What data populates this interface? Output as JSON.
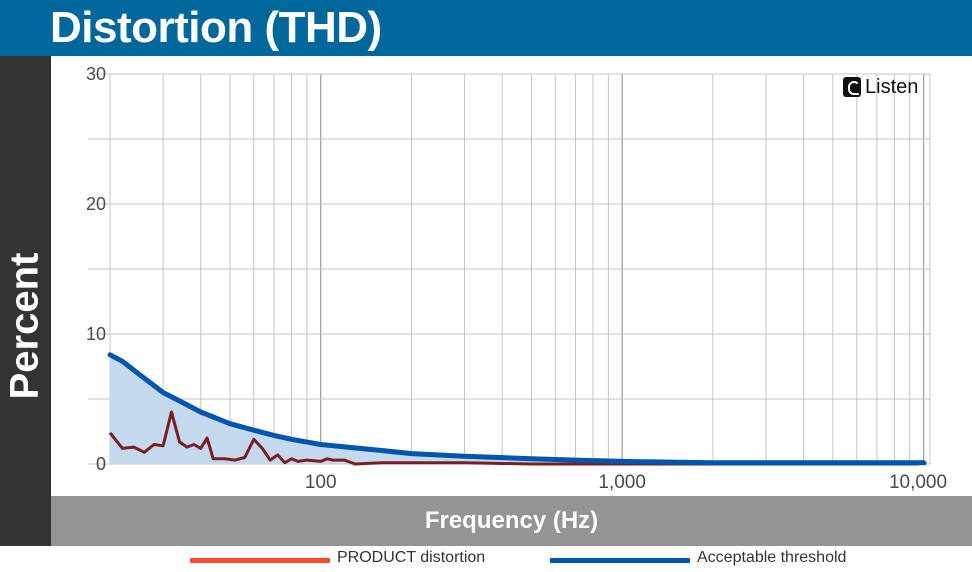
{
  "chart_data": {
    "type": "line",
    "title": "Distortion (THD)",
    "xlabel": "Frequency (Hz)",
    "ylabel": "Percent",
    "x_scale": "log",
    "xlim": [
      20,
      10500
    ],
    "ylim": [
      0,
      30
    ],
    "grid": true,
    "y_ticks": [
      "0",
      "10",
      "20",
      "30"
    ],
    "x_ticks": [
      {
        "value": 100,
        "label": "100"
      },
      {
        "value": 1000,
        "label": "1,000"
      },
      {
        "value": 10000,
        "label": "10,000"
      }
    ],
    "series": [
      {
        "name": "PRODUCT distortion",
        "color": "#7a1f20",
        "points": [
          [
            20,
            2.4
          ],
          [
            22,
            1.2
          ],
          [
            24,
            1.3
          ],
          [
            26,
            0.9
          ],
          [
            28,
            1.5
          ],
          [
            30,
            1.4
          ],
          [
            32,
            4.0
          ],
          [
            34,
            1.7
          ],
          [
            36,
            1.3
          ],
          [
            38,
            1.5
          ],
          [
            40,
            1.2
          ],
          [
            42,
            2.0
          ],
          [
            44,
            0.4
          ],
          [
            48,
            0.4
          ],
          [
            52,
            0.3
          ],
          [
            56,
            0.5
          ],
          [
            60,
            1.9
          ],
          [
            64,
            1.2
          ],
          [
            68,
            0.3
          ],
          [
            72,
            0.7
          ],
          [
            76,
            0.1
          ],
          [
            80,
            0.4
          ],
          [
            84,
            0.2
          ],
          [
            90,
            0.3
          ],
          [
            100,
            0.2
          ],
          [
            105,
            0.4
          ],
          [
            110,
            0.3
          ],
          [
            120,
            0.3
          ],
          [
            130,
            0.0
          ],
          [
            160,
            0.1
          ],
          [
            200,
            0.1
          ],
          [
            300,
            0.1
          ],
          [
            500,
            0.0
          ],
          [
            1000,
            0.0
          ],
          [
            5000,
            0.0
          ],
          [
            9500,
            0.0
          ],
          [
            10000,
            0.1
          ],
          [
            10200,
            0.0
          ]
        ]
      },
      {
        "name": "Acceptable threshold",
        "color": "#0055b0",
        "fill_color": "#c5d9ee",
        "points": [
          [
            20,
            8.4
          ],
          [
            22,
            7.9
          ],
          [
            25,
            6.9
          ],
          [
            30,
            5.5
          ],
          [
            35,
            4.7
          ],
          [
            40,
            4.0
          ],
          [
            50,
            3.1
          ],
          [
            60,
            2.6
          ],
          [
            70,
            2.2
          ],
          [
            80,
            1.9
          ],
          [
            100,
            1.5
          ],
          [
            150,
            1.1
          ],
          [
            200,
            0.8
          ],
          [
            300,
            0.6
          ],
          [
            500,
            0.4
          ],
          [
            700,
            0.3
          ],
          [
            1000,
            0.2
          ],
          [
            2000,
            0.1
          ],
          [
            5000,
            0.1
          ],
          [
            10000,
            0.1
          ]
        ]
      }
    ]
  },
  "watermark": {
    "text": "Listen",
    "icon": "listen-logo-icon"
  },
  "legend": {
    "items": [
      {
        "label": "PRODUCT distortion",
        "color": "#ff4b2b"
      },
      {
        "label": "Acceptable threshold",
        "color": "#0055b0"
      }
    ]
  },
  "colors": {
    "title_bar": "#00679c",
    "y_bar": "#333333",
    "x_bar": "#949494",
    "grid": "#c4c4c4"
  }
}
